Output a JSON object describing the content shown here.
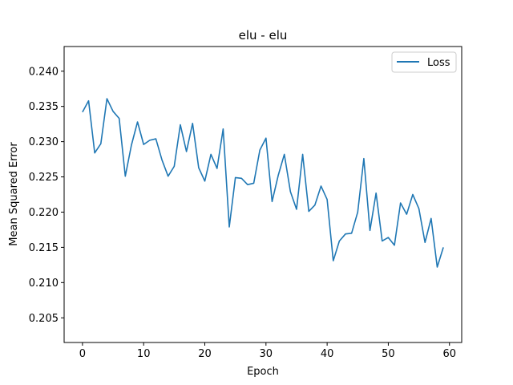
{
  "chart_data": {
    "type": "line",
    "title": "elu - elu",
    "xlabel": "Epoch",
    "ylabel": "Mean Squared Error",
    "xlim": [
      -3,
      62
    ],
    "ylim": [
      0.2015,
      0.2435
    ],
    "xticks": [
      0,
      10,
      20,
      30,
      40,
      50,
      60
    ],
    "yticks": [
      0.205,
      0.21,
      0.215,
      0.22,
      0.225,
      0.23,
      0.235,
      0.24
    ],
    "ytick_labels": [
      "0.205",
      "0.210",
      "0.215",
      "0.220",
      "0.225",
      "0.230",
      "0.235",
      "0.240"
    ],
    "grid": false,
    "legend_position": "top-right",
    "series": [
      {
        "name": "Loss",
        "color": "#1f77b4",
        "x": [
          0,
          1,
          2,
          3,
          4,
          5,
          6,
          7,
          8,
          9,
          10,
          11,
          12,
          13,
          14,
          15,
          16,
          17,
          18,
          19,
          20,
          21,
          22,
          23,
          24,
          25,
          26,
          27,
          28,
          29,
          30,
          31,
          32,
          33,
          34,
          35,
          36,
          37,
          38,
          39,
          40,
          41,
          42,
          43,
          44,
          45,
          46,
          47,
          48,
          49,
          50,
          51,
          52,
          53,
          54,
          55,
          56,
          57,
          58,
          59
        ],
        "y": [
          0.2342,
          0.2358,
          0.2284,
          0.2297,
          0.2361,
          0.2343,
          0.2333,
          0.2251,
          0.2295,
          0.2328,
          0.2296,
          0.2302,
          0.2304,
          0.2274,
          0.2251,
          0.2265,
          0.2324,
          0.2286,
          0.2326,
          0.2263,
          0.2244,
          0.2282,
          0.2262,
          0.2318,
          0.2179,
          0.2249,
          0.2248,
          0.2239,
          0.2241,
          0.2288,
          0.2305,
          0.2215,
          0.2252,
          0.2282,
          0.2229,
          0.2204,
          0.2282,
          0.2201,
          0.221,
          0.2237,
          0.2218,
          0.2131,
          0.2159,
          0.2169,
          0.217,
          0.22,
          0.2276,
          0.2174,
          0.2227,
          0.2159,
          0.2164,
          0.2153,
          0.2213,
          0.2197,
          0.2225,
          0.2205,
          0.2157,
          0.2191,
          0.2122,
          0.215
        ]
      }
    ]
  }
}
